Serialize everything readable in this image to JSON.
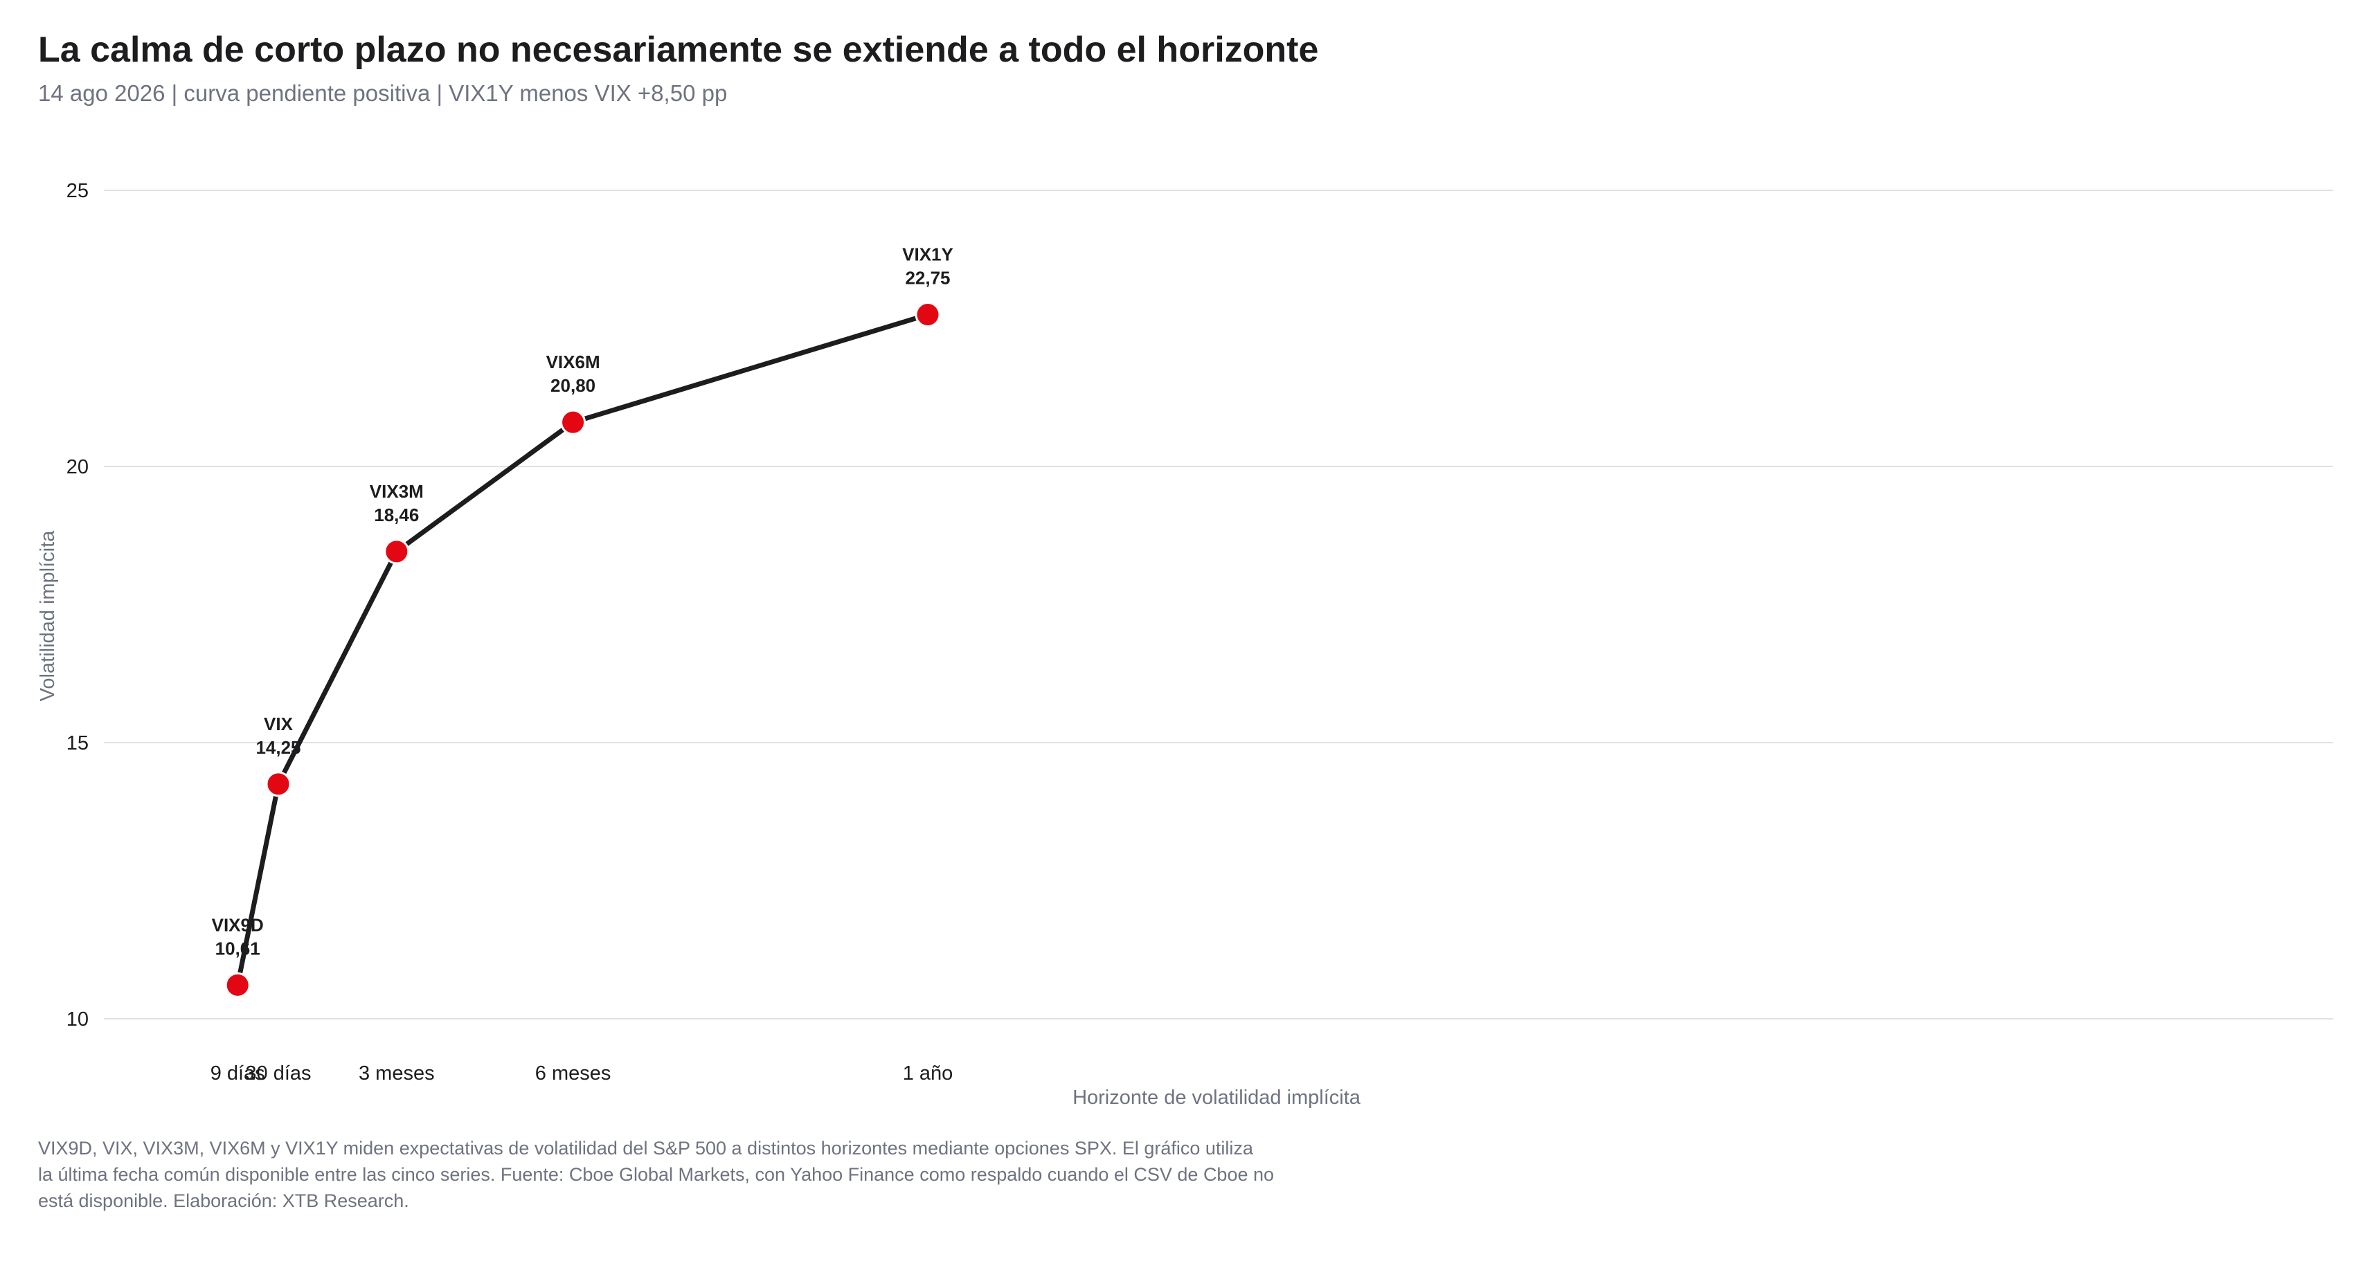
{
  "title": "La calma de corto plazo no necesariamente se extiende a todo el horizonte",
  "subtitle": "14 ago 2026 | curva pendiente positiva | VIX1Y menos VIX +8,50 pp",
  "footnote": [
    "VIX9D, VIX, VIX3M, VIX6M y VIX1Y miden expectativas de volatilidad del S&P 500 a distintos horizontes mediante opciones SPX. El gráfico utiliza",
    "la última fecha común disponible entre las cinco series. Fuente: Cboe Global Markets, con Yahoo Finance como respaldo cuando el CSV de Cboe no",
    "está disponible. Elaboración: XTB Research."
  ],
  "colors": {
    "line": "#1d1d1f",
    "marker": "#e30613",
    "grid": "#e1e1e1",
    "axis_text": "#1d1d1f",
    "axis_label": "#6e7380"
  },
  "chart_data": {
    "type": "line",
    "xlabel": "Horizonte de volatilidad implícita",
    "ylabel": "Volatilidad implícita",
    "x_unit": "days",
    "xlim": [
      -60,
      1090
    ],
    "ylim": [
      10,
      25
    ],
    "yticks": [
      10,
      15,
      20,
      25
    ],
    "grid": "horizontal",
    "legend": "none",
    "points": [
      {
        "name": "VIX9D",
        "x": 9,
        "x_label": "9 días",
        "y": 10.61,
        "value_label": "10,61"
      },
      {
        "name": "VIX",
        "x": 30,
        "x_label": "30 días",
        "y": 14.25,
        "value_label": "14,25"
      },
      {
        "name": "VIX3M",
        "x": 91,
        "x_label": "3 meses",
        "y": 18.46,
        "value_label": "18,46"
      },
      {
        "name": "VIX6M",
        "x": 182,
        "x_label": "6 meses",
        "y": 20.8,
        "value_label": "20,80"
      },
      {
        "name": "VIX1Y",
        "x": 365,
        "x_label": "1 año",
        "y": 22.75,
        "value_label": "22,75"
      }
    ]
  }
}
